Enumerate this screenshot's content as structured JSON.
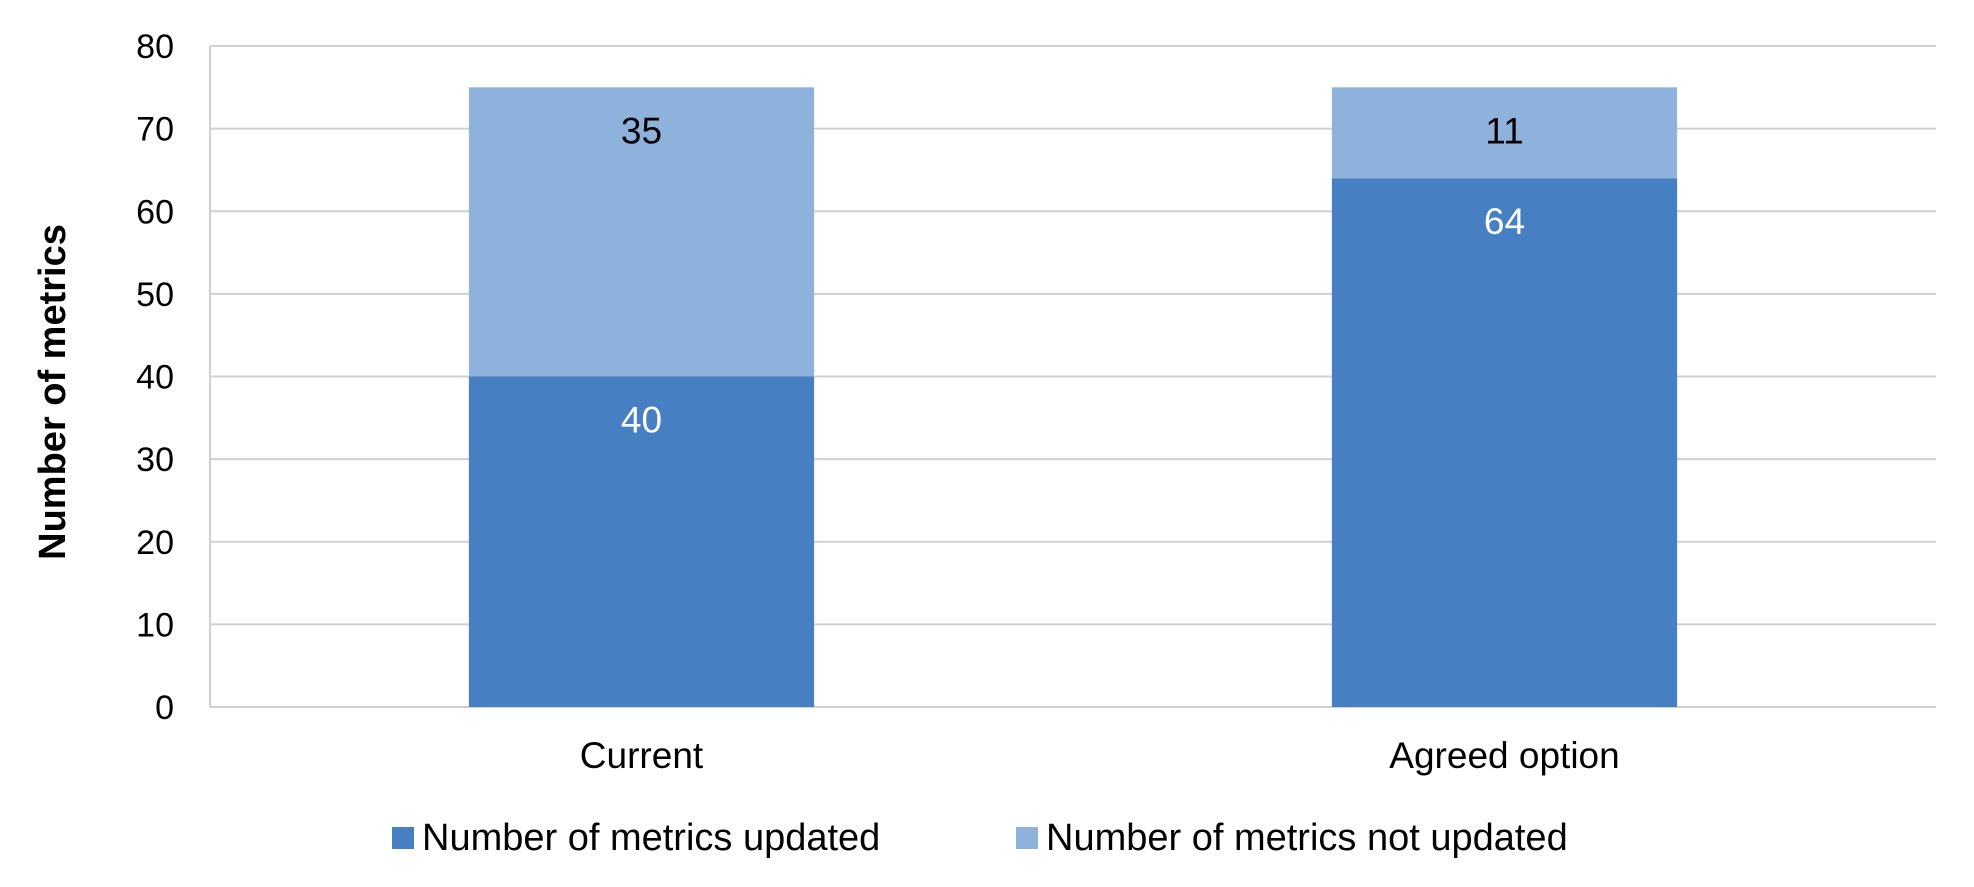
{
  "chart_data": {
    "type": "bar",
    "stacked": true,
    "categories": [
      "Current",
      "Agreed option"
    ],
    "series": [
      {
        "name": "Number of metrics updated",
        "values": [
          40,
          64
        ],
        "color": "#467FC2",
        "label_color": "#FFFFFF"
      },
      {
        "name": "Number of metrics not updated",
        "values": [
          35,
          11
        ],
        "color": "#8FB2DC",
        "label_color": "#000000"
      }
    ],
    "ylabel": "Number of metrics",
    "ylim": [
      0,
      80
    ],
    "yticks": [
      0,
      10,
      20,
      30,
      40,
      50,
      60,
      70,
      80
    ],
    "grid": true,
    "legend_position": "bottom"
  }
}
